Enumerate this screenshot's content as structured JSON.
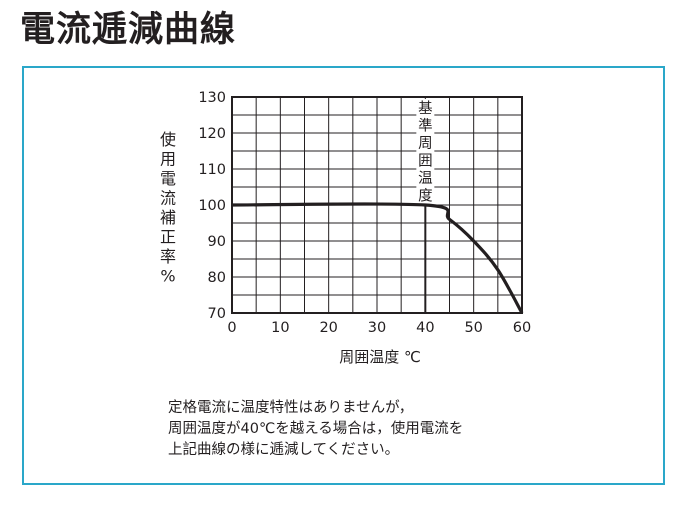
{
  "page": {
    "title": "電流逓減曲線"
  },
  "chart_data": {
    "type": "line",
    "x": [
      0,
      40,
      45,
      50,
      55,
      60
    ],
    "series": [
      {
        "values": [
          100,
          100,
          96,
          90,
          82,
          70
        ]
      }
    ],
    "xlim": [
      0,
      60
    ],
    "ylim": [
      70,
      130
    ],
    "x_ticks": [
      "0",
      "10",
      "20",
      "30",
      "40",
      "50",
      "60"
    ],
    "y_ticks": [
      "70",
      "80",
      "90",
      "100",
      "110",
      "120",
      "130"
    ],
    "xlabel": "周囲温度 ℃",
    "ylabel": "使用電流補正率 %",
    "grid": true,
    "annotation": {
      "text": "基準周囲温度",
      "x": 40
    }
  },
  "note": {
    "lines": [
      "定格電流に温度特性はありませんが，",
      "周囲温度が40℃を越える場合は，使用電流を",
      "上記曲線の様に逓減してください。"
    ]
  }
}
